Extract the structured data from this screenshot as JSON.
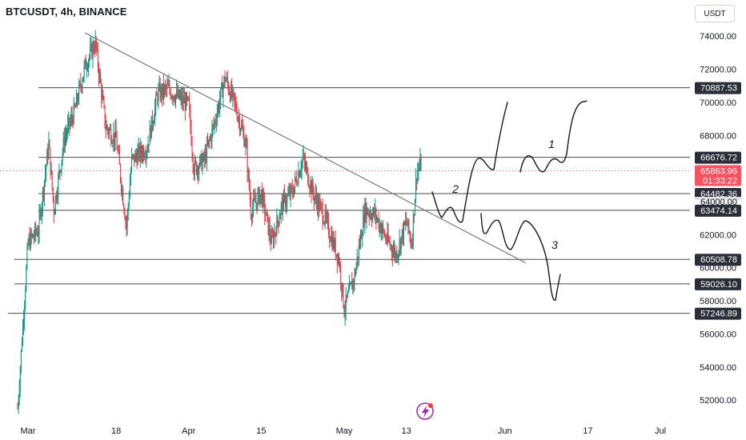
{
  "header": {
    "title": "BTCUSDT, 4h, BINANCE",
    "currency_button": "USDT"
  },
  "chart_data": {
    "type": "candlestick",
    "symbol": "BTCUSDT",
    "interval": "4h",
    "exchange": "BINANCE",
    "ylim": [
      50800,
      75800
    ],
    "y_ticks": [
      "52000.00",
      "54000.00",
      "56000.00",
      "58000.00",
      "60000.00",
      "62000.00",
      "64000.00",
      "66000.00",
      "68000.00",
      "70000.00",
      "72000.00",
      "74000.00"
    ],
    "x_ticks": [
      "Mar",
      "18",
      "Apr",
      "15",
      "May",
      "13",
      "Jun",
      "17",
      "Jul"
    ],
    "x_tick_dates": [
      "2024-03-01",
      "2024-03-18",
      "2024-04-01",
      "2024-04-15",
      "2024-05-01",
      "2024-05-13",
      "2024-06-01",
      "2024-06-17",
      "2024-07-01"
    ],
    "last_price": {
      "value": "65863.96",
      "countdown": "01:33:22"
    },
    "price_tags": [
      "70887.53",
      "66676.72",
      "64482.36",
      "64000.00",
      "63474.14",
      "60508.78",
      "59026.10",
      "57246.89"
    ],
    "horizontal_levels": [
      70887.53,
      66676.72,
      64482.36,
      63474.14,
      60508.78,
      59026.1,
      57246.89
    ],
    "trendline": {
      "from": [
        "2024-03-12",
        74200
      ],
      "to": [
        "2024-06-05",
        60300
      ]
    },
    "scenario_labels": [
      "1",
      "2",
      "3"
    ],
    "price_path": [
      [
        "2024-02-28",
        51500
      ],
      [
        "2024-03-01",
        61500
      ],
      [
        "2024-03-03",
        62300
      ],
      [
        "2024-03-05",
        67500
      ],
      [
        "2024-03-06",
        63500
      ],
      [
        "2024-03-08",
        67800
      ],
      [
        "2024-03-10",
        69500
      ],
      [
        "2024-03-12",
        72200
      ],
      [
        "2024-03-14",
        73600
      ],
      [
        "2024-03-16",
        68500
      ],
      [
        "2024-03-18",
        67800
      ],
      [
        "2024-03-20",
        62500
      ],
      [
        "2024-03-21",
        66500
      ],
      [
        "2024-03-24",
        67300
      ],
      [
        "2024-03-26",
        70500
      ],
      [
        "2024-03-28",
        70800
      ],
      [
        "2024-04-01",
        69800
      ],
      [
        "2024-04-02",
        66000
      ],
      [
        "2024-04-04",
        66500
      ],
      [
        "2024-04-06",
        68800
      ],
      [
        "2024-04-08",
        71500
      ],
      [
        "2024-04-10",
        69800
      ],
      [
        "2024-04-12",
        67500
      ],
      [
        "2024-04-13",
        63500
      ],
      [
        "2024-04-15",
        64500
      ],
      [
        "2024-04-17",
        61500
      ],
      [
        "2024-04-19",
        63800
      ],
      [
        "2024-04-21",
        64600
      ],
      [
        "2024-04-23",
        66600
      ],
      [
        "2024-04-25",
        64500
      ],
      [
        "2024-04-27",
        63200
      ],
      [
        "2024-04-30",
        60500
      ],
      [
        "2024-05-01",
        57500
      ],
      [
        "2024-05-03",
        59500
      ],
      [
        "2024-05-05",
        63500
      ],
      [
        "2024-05-07",
        63200
      ],
      [
        "2024-05-09",
        61800
      ],
      [
        "2024-05-11",
        60800
      ],
      [
        "2024-05-13",
        62800
      ],
      [
        "2024-05-14",
        61500
      ],
      [
        "2024-05-15",
        65800
      ],
      [
        "2024-05-16",
        66300
      ]
    ]
  }
}
